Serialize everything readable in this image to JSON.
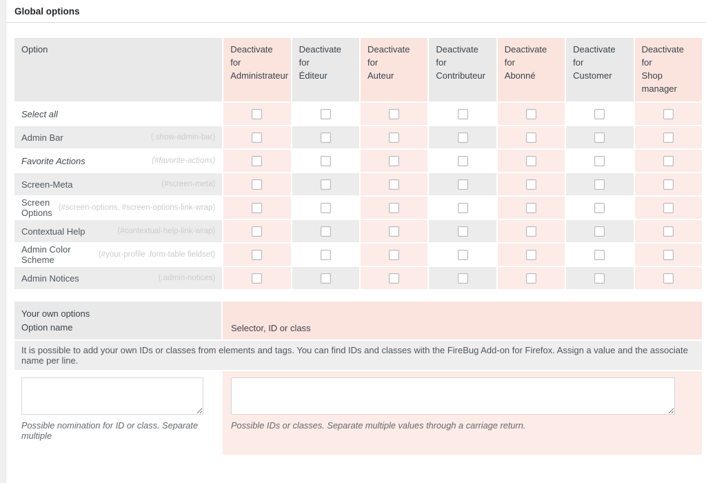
{
  "page": {
    "heading": "Global options"
  },
  "colors": {
    "pink_header": "#fbe4de",
    "pink_body": "#fdebe7",
    "gray_header": "#e9e9e9",
    "gray_row": "#ececec",
    "desc_bg": "#eeeeee"
  },
  "options_table": {
    "option_header": "Option",
    "columns": [
      {
        "line1": "Deactivate for",
        "line2": "Administrateur",
        "pink": true
      },
      {
        "line1": "Deactivate for",
        "line2": "Éditeur",
        "pink": false
      },
      {
        "line1": "Deactivate for",
        "line2": "Auteur",
        "pink": true
      },
      {
        "line1": "Deactivate for",
        "line2": "Contributeur",
        "pink": false
      },
      {
        "line1": "Deactivate for",
        "line2": "Abonné",
        "pink": true
      },
      {
        "line1": "Deactivate for",
        "line2": "Customer",
        "pink": false
      },
      {
        "line1": "Deactivate for",
        "line2": "Shop manager",
        "pink": true
      }
    ],
    "rows": [
      {
        "label": "Select all",
        "hint": "",
        "italic": true
      },
      {
        "label": "Admin Bar",
        "hint": "(.show-admin-bar)",
        "italic": false
      },
      {
        "label": "Favorite Actions",
        "hint": "(#favorite-actions)",
        "italic": true
      },
      {
        "label": "Screen-Meta",
        "hint": "(#screen-meta)",
        "italic": false
      },
      {
        "label": "Screen Options",
        "hint": "(#screen-options, #screen-options-link-wrap)",
        "italic": false
      },
      {
        "label": "Contextual Help",
        "hint": "(#contextual-help-link-wrap)",
        "italic": false
      },
      {
        "label": "Admin Color Scheme",
        "hint": "(#your-profile .form-table fieldset)",
        "italic": false
      },
      {
        "label": "Admin Notices",
        "hint": "(.admin-notices)",
        "italic": false
      }
    ],
    "checkboxes_checked": false
  },
  "own_options_table": {
    "header_left_line1": "Your own options",
    "header_left_line2": "Option name",
    "header_right": "Selector, ID or class",
    "description": "It is possible to add your own IDs or classes from elements and tags. You can find IDs and classes with the FireBug Add-on for Firefox. Assign a value and the associate name per line.",
    "left_textarea_value": "",
    "right_textarea_value": "",
    "left_caption": "Possible nomination for ID or class. Separate multiple",
    "right_caption": "Possible IDs or classes. Separate multiple values through a carriage return."
  }
}
